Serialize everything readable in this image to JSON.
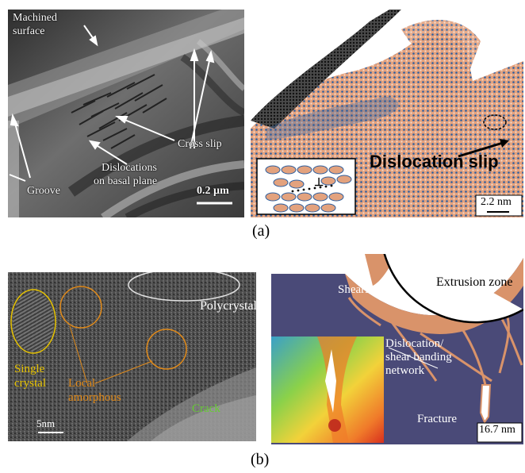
{
  "captions": {
    "a": "(a)",
    "b": "(b)"
  },
  "panel_a_left": {
    "labels": {
      "machined_surface_1": "Machined",
      "machined_surface_2": "surface",
      "cross_slip": "Cross slip",
      "dislocations_1": "Dislocations",
      "dislocations_2": "on basal plane",
      "groove": "Groove"
    },
    "scale_bar": "0.2 µm"
  },
  "panel_a_right": {
    "title": "Dislocation slip",
    "inset_mark": "⊥",
    "scale_bar": "2.2 nm"
  },
  "panel_b_left": {
    "labels": {
      "polycrystals": "Polycrystals",
      "single_1": "Single",
      "single_2": "crystal",
      "local_1": "Local",
      "local_2": "amorphous",
      "crack": "Crack"
    },
    "scale_bar": "5nm"
  },
  "panel_b_right": {
    "labels": {
      "shearing": "Shearing",
      "extrusion": "Extrusion zone",
      "network_1": "Dislocation/",
      "network_2": "shear banding",
      "network_3": "network",
      "fracture": "Fracture"
    },
    "scale_bar": "16.7 nm"
  },
  "colors": {
    "tem_dark": "#3a3a3a",
    "md_orange": "#e3a27e",
    "md_blue": "#2f5f9e",
    "sim_navy": "#4a4a78",
    "sim_copper": "#d9936a",
    "label_yellow": "#e6c200",
    "label_orange": "#e08a1a",
    "label_green": "#66cc33"
  }
}
